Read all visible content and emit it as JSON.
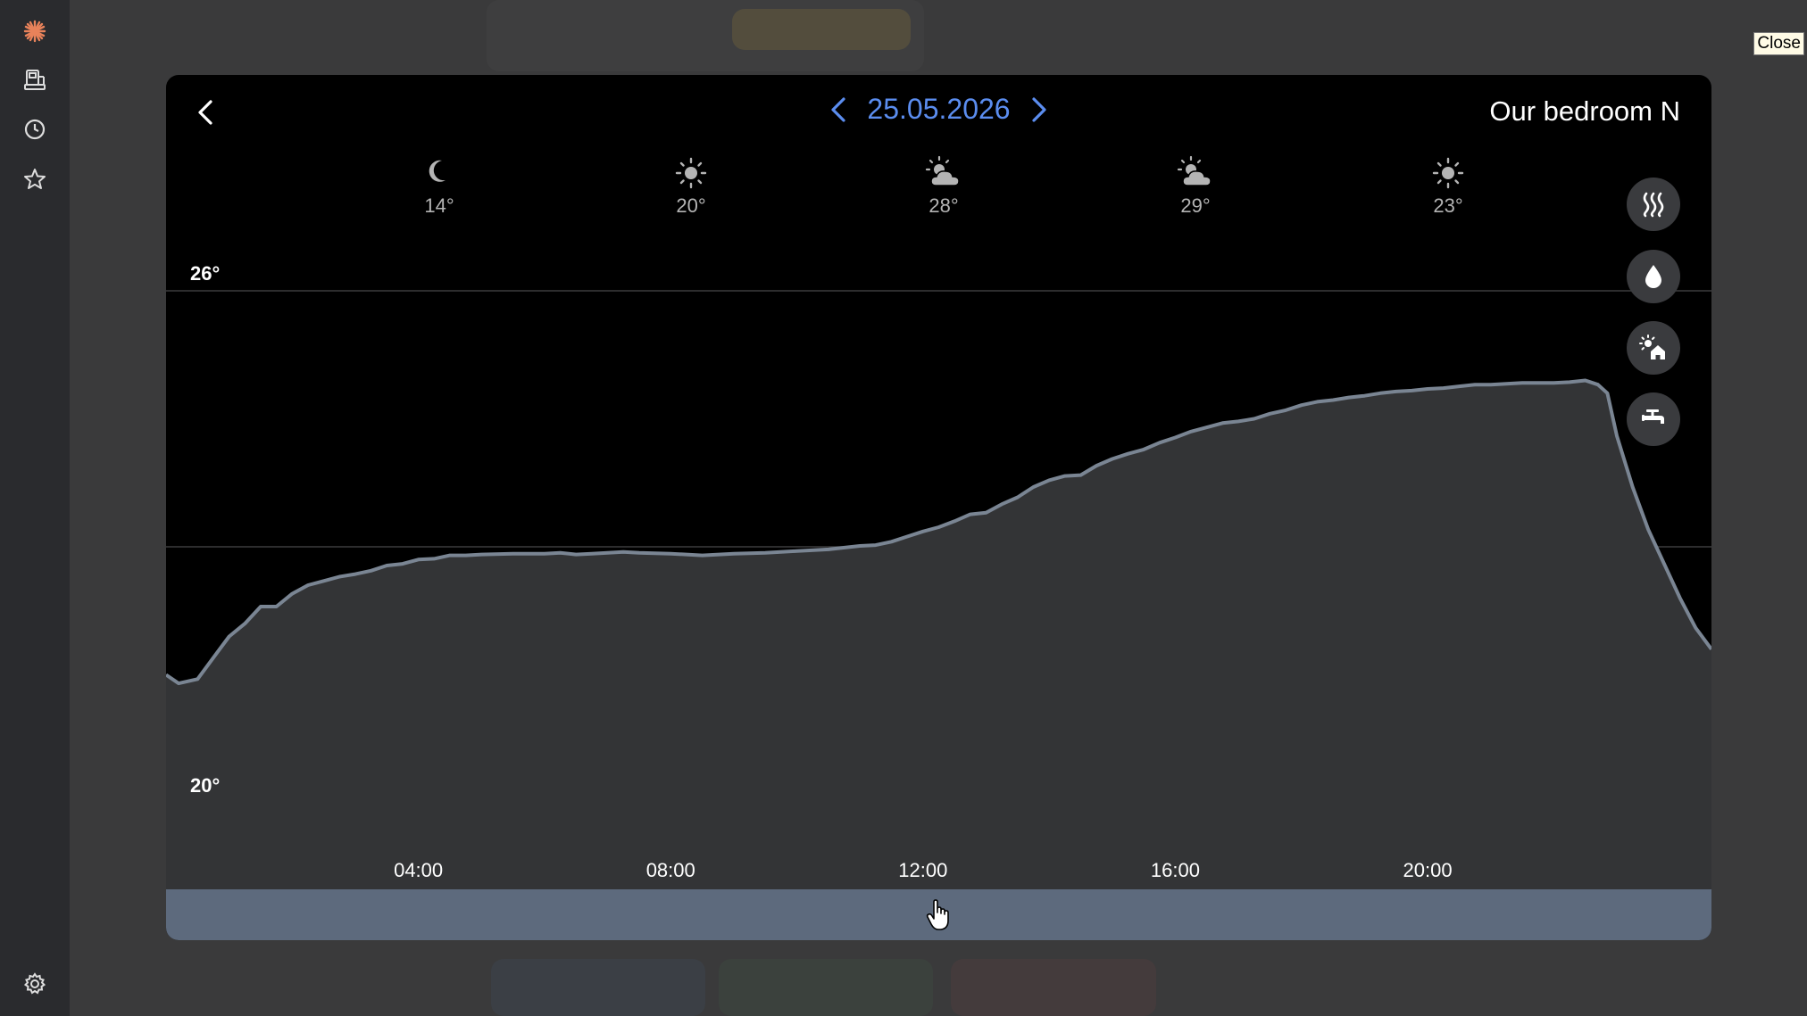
{
  "close_label": "Close",
  "sidebar": {
    "items": [
      {
        "name": "sun-logo-icon",
        "color": "#e8825a"
      },
      {
        "name": "devices-icon"
      },
      {
        "name": "history-icon"
      },
      {
        "name": "favorites-icon"
      },
      {
        "name": "settings-icon"
      }
    ]
  },
  "header": {
    "date": "25.05.2026",
    "room": "Our bedroom N"
  },
  "weather": [
    {
      "icon": "moon-icon",
      "temp": "14°"
    },
    {
      "icon": "sun-icon",
      "temp": "20°"
    },
    {
      "icon": "partly-cloudy-icon",
      "temp": "28°"
    },
    {
      "icon": "partly-cloudy-icon",
      "temp": "29°"
    },
    {
      "icon": "sun-icon",
      "temp": "23°"
    }
  ],
  "mode_buttons": [
    "heating-icon",
    "humidity-icon",
    "outdoor-icon",
    "hot-water-icon"
  ],
  "chart_data": {
    "type": "area",
    "x_unit": "hours",
    "xticks": [
      "04:00",
      "08:00",
      "12:00",
      "16:00",
      "20:00"
    ],
    "xtick_values": [
      4,
      8,
      12,
      16,
      20
    ],
    "xlim": [
      0,
      24.5
    ],
    "ylim": [
      20,
      26
    ],
    "yticks": [
      "20°",
      "26°"
    ],
    "gridlines": [
      20,
      23,
      26
    ],
    "line_color": "#7a8593",
    "fill_color": "#333436",
    "points": [
      [
        0,
        21.5
      ],
      [
        0.2,
        21.4
      ],
      [
        0.5,
        21.45
      ],
      [
        0.8,
        21.75
      ],
      [
        1,
        21.95
      ],
      [
        1.25,
        22.1
      ],
      [
        1.5,
        22.3
      ],
      [
        1.75,
        22.3
      ],
      [
        2,
        22.45
      ],
      [
        2.25,
        22.55
      ],
      [
        2.5,
        22.6
      ],
      [
        2.75,
        22.65
      ],
      [
        3,
        22.68
      ],
      [
        3.25,
        22.72
      ],
      [
        3.5,
        22.78
      ],
      [
        3.75,
        22.8
      ],
      [
        4,
        22.85
      ],
      [
        4.25,
        22.86
      ],
      [
        4.5,
        22.9
      ],
      [
        4.75,
        22.9
      ],
      [
        5,
        22.91
      ],
      [
        5.5,
        22.92
      ],
      [
        6,
        22.92
      ],
      [
        6.25,
        22.93
      ],
      [
        6.5,
        22.91
      ],
      [
        6.75,
        22.92
      ],
      [
        7,
        22.93
      ],
      [
        7.25,
        22.94
      ],
      [
        7.5,
        22.93
      ],
      [
        8,
        22.92
      ],
      [
        8.5,
        22.9
      ],
      [
        9,
        22.92
      ],
      [
        9.5,
        22.93
      ],
      [
        10,
        22.95
      ],
      [
        10.5,
        22.97
      ],
      [
        11,
        23.01
      ],
      [
        11.25,
        23.02
      ],
      [
        11.5,
        23.06
      ],
      [
        11.75,
        23.12
      ],
      [
        12,
        23.18
      ],
      [
        12.25,
        23.23
      ],
      [
        12.5,
        23.3
      ],
      [
        12.75,
        23.38
      ],
      [
        13,
        23.4
      ],
      [
        13.25,
        23.5
      ],
      [
        13.5,
        23.58
      ],
      [
        13.75,
        23.7
      ],
      [
        14,
        23.78
      ],
      [
        14.25,
        23.83
      ],
      [
        14.5,
        23.84
      ],
      [
        14.75,
        23.95
      ],
      [
        15,
        24.03
      ],
      [
        15.25,
        24.09
      ],
      [
        15.5,
        24.14
      ],
      [
        15.75,
        24.22
      ],
      [
        16,
        24.28
      ],
      [
        16.25,
        24.35
      ],
      [
        16.5,
        24.4
      ],
      [
        16.75,
        24.45
      ],
      [
        17,
        24.47
      ],
      [
        17.25,
        24.5
      ],
      [
        17.5,
        24.56
      ],
      [
        17.75,
        24.6
      ],
      [
        18,
        24.66
      ],
      [
        18.25,
        24.7
      ],
      [
        18.5,
        24.72
      ],
      [
        18.75,
        24.75
      ],
      [
        19,
        24.77
      ],
      [
        19.25,
        24.8
      ],
      [
        19.5,
        24.82
      ],
      [
        19.75,
        24.83
      ],
      [
        20,
        24.85
      ],
      [
        20.25,
        24.86
      ],
      [
        20.5,
        24.88
      ],
      [
        20.75,
        24.9
      ],
      [
        21,
        24.9
      ],
      [
        21.5,
        24.92
      ],
      [
        22,
        24.92
      ],
      [
        22.25,
        24.93
      ],
      [
        22.5,
        24.95
      ],
      [
        22.7,
        24.9
      ],
      [
        22.85,
        24.8
      ],
      [
        23,
        24.3
      ],
      [
        23.25,
        23.7
      ],
      [
        23.5,
        23.2
      ],
      [
        23.75,
        22.8
      ],
      [
        24,
        22.4
      ],
      [
        24.25,
        22.05
      ],
      [
        24.5,
        21.8
      ]
    ]
  }
}
